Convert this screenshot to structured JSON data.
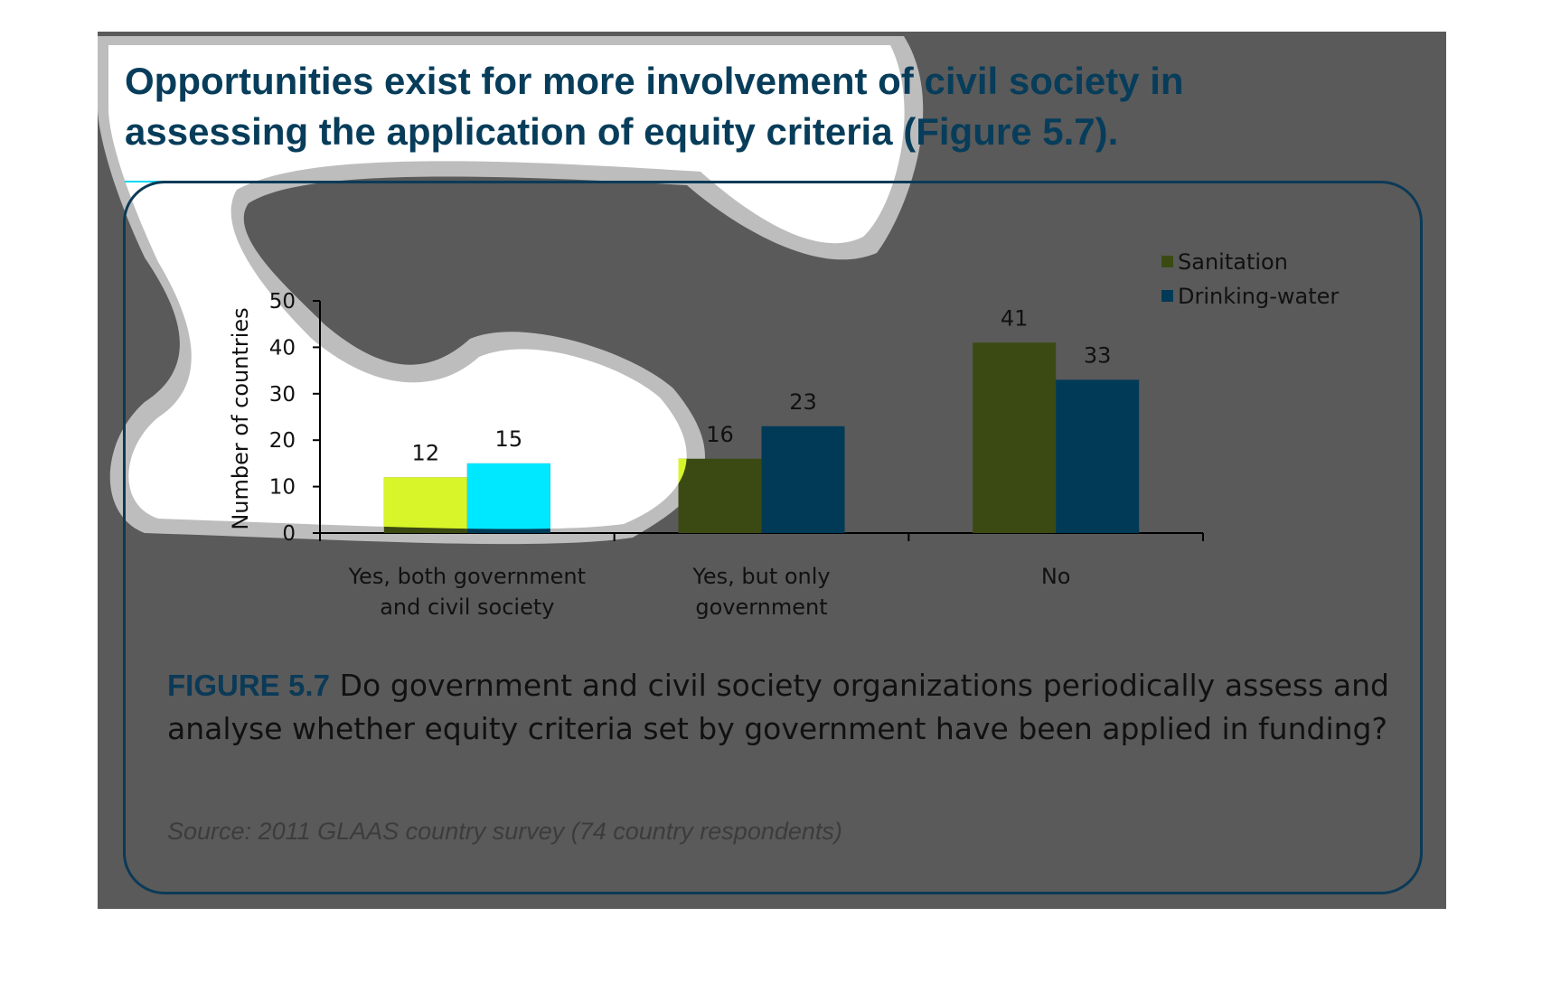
{
  "headline": "Opportunities exist for more involvement of civil society in assessing the application of equity criteria (Figure 5.7).",
  "caption": {
    "label": "FIGURE 5.7",
    "text": " Do government and civil society organizations periodically assess and analyse whether equity criteria set by government have been applied in funding?"
  },
  "source": "Source: 2011 GLAAS country survey (74 country respondents)",
  "chart_data": {
    "type": "bar",
    "ylabel": "Number of countries",
    "ylim": [
      0,
      50
    ],
    "yticks": [
      0,
      10,
      20,
      30,
      40,
      50
    ],
    "categories": [
      [
        "Yes, both government",
        "and civil society"
      ],
      [
        "Yes, but only",
        "government"
      ],
      [
        "No"
      ]
    ],
    "series": [
      {
        "name": "Sanitation",
        "color": "#3b4a12",
        "highlight_color": "#d8f52a",
        "values": [
          12,
          16,
          41
        ]
      },
      {
        "name": "Drinking-water",
        "color": "#003a57",
        "highlight_color": "#00e8ff",
        "values": [
          15,
          23,
          33
        ]
      }
    ],
    "legend_position": "top-right",
    "grid": false
  },
  "overlay": {
    "color": "#ffffff",
    "halo_color": "#bdbdbd"
  }
}
